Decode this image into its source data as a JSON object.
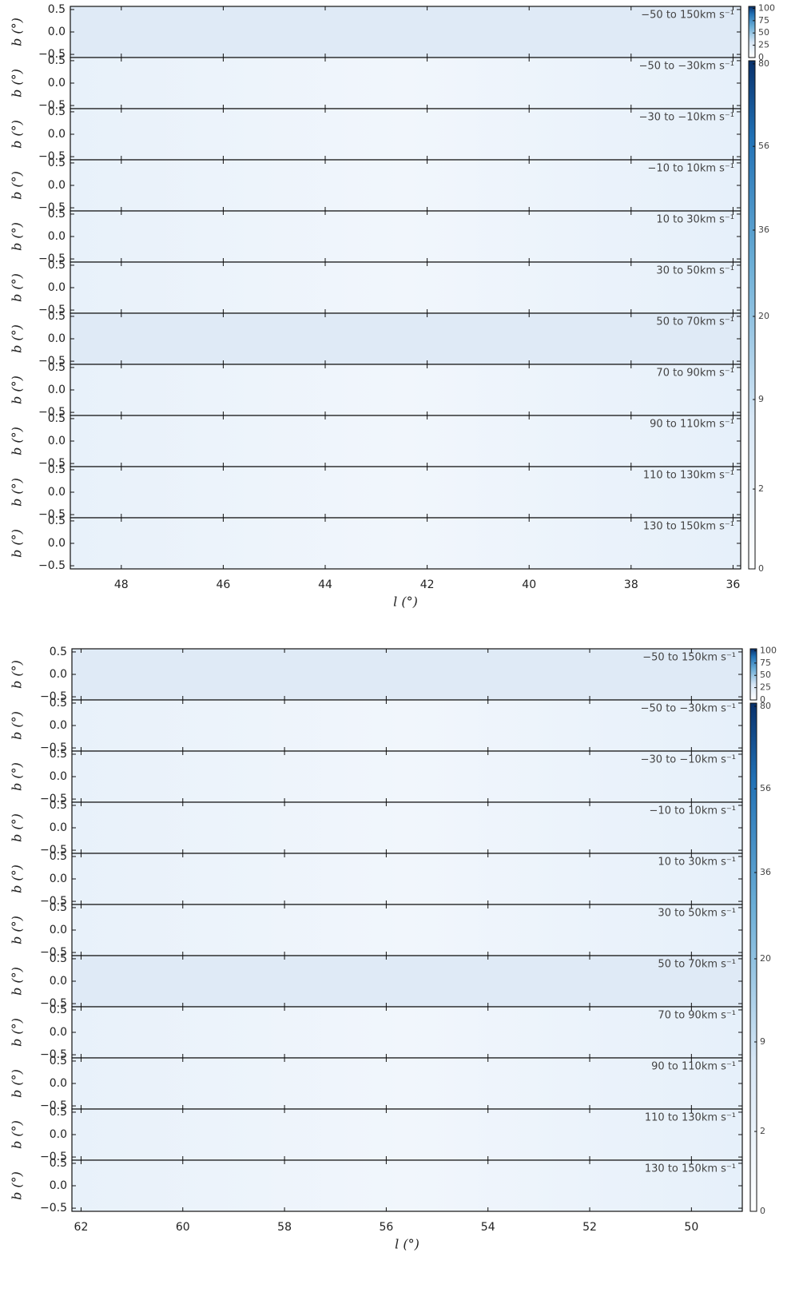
{
  "figures": [
    {
      "panel_labels": [
        "−50 to 150km s⁻¹",
        "−50 to −30km s⁻¹",
        "−30 to −10km s⁻¹",
        "−10 to 10km s⁻¹",
        "10 to 30km s⁻¹",
        "30 to 50km s⁻¹",
        "50 to 70km s⁻¹",
        "70 to 90km s⁻¹",
        "90 to 110km s⁻¹",
        "110 to 130km s⁻¹",
        "130 to 150km s⁻¹"
      ],
      "xlabel": "l (°)",
      "ylabel": "b (°)",
      "xlim": [
        49.0,
        35.85
      ],
      "xticks": [
        48,
        46,
        44,
        42,
        40,
        38,
        36
      ],
      "ylim": [
        -0.57,
        0.57
      ],
      "yticks": [
        {
          "value": 0.5,
          "label": "0.5"
        },
        {
          "value": 0,
          "label": "0.0"
        },
        {
          "value": -0.5,
          "label": "−0.5"
        }
      ],
      "colorbar_small": {
        "lim": [
          0,
          104
        ],
        "ticks": [
          0,
          25,
          50,
          75,
          100
        ],
        "scale": "linear"
      },
      "colorbar": {
        "lim": [
          0,
          81
        ],
        "ticks": [
          0,
          2,
          9,
          20,
          36,
          56,
          80
        ],
        "scale": "sqrt"
      }
    },
    {
      "panel_labels": [
        "−50 to 150km s⁻¹",
        "−50 to −30km s⁻¹",
        "−30 to −10km s⁻¹",
        "−10 to 10km s⁻¹",
        "10 to 30km s⁻¹",
        "30 to 50km s⁻¹",
        "50 to 70km s⁻¹",
        "70 to 90km s⁻¹",
        "90 to 110km s⁻¹",
        "110 to 130km s⁻¹",
        "130 to 150km s⁻¹"
      ],
      "xlabel": "l (°)",
      "ylabel": "b (°)",
      "xlim": [
        62.18,
        49.0
      ],
      "xticks": [
        62,
        60,
        58,
        56,
        54,
        52,
        50
      ],
      "ylim": [
        -0.57,
        0.57
      ],
      "yticks": [
        {
          "value": 0.5,
          "label": "0.5"
        },
        {
          "value": 0,
          "label": "0.0"
        },
        {
          "value": -0.5,
          "label": "−0.5"
        }
      ],
      "colorbar_small": {
        "lim": [
          0,
          104
        ],
        "ticks": [
          0,
          25,
          50,
          75,
          100
        ],
        "scale": "linear"
      },
      "colorbar": {
        "lim": [
          0,
          81
        ],
        "ticks": [
          0,
          2,
          9,
          20,
          36,
          56,
          80
        ],
        "scale": "sqrt"
      }
    }
  ]
}
